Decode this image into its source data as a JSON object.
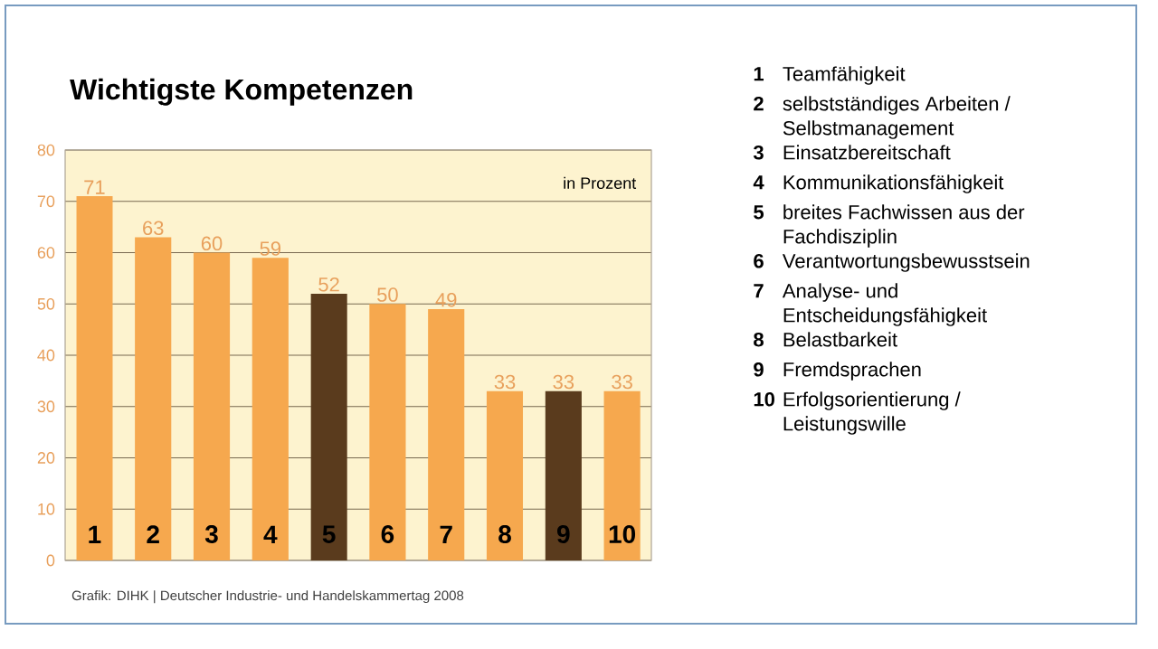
{
  "chart_data": {
    "type": "bar",
    "title": "Wichtigste Kompetenzen",
    "categories": [
      "1",
      "2",
      "3",
      "4",
      "5",
      "6",
      "7",
      "8",
      "9",
      "10"
    ],
    "values": [
      71,
      63,
      60,
      59,
      52,
      50,
      49,
      33,
      33,
      33
    ],
    "colors": [
      "#f6a84e",
      "#f6a84e",
      "#f6a84e",
      "#f6a84e",
      "#5a3b1d",
      "#f6a84e",
      "#f6a84e",
      "#f6a84e",
      "#5a3b1d",
      "#f6a84e"
    ],
    "ylim": [
      0,
      80
    ],
    "yticks": [
      0,
      10,
      20,
      30,
      40,
      50,
      60,
      70,
      80
    ],
    "grid": "y",
    "data_labels": true,
    "annotations": [
      "in Prozent",
      "Grafik: DIHK | Deutscher Industrie- und Handelskammertag 2008",
      "Teamfähigkeit",
      "selbstständiges Arbeiten / Selbstmanagement",
      "Einsatzbereitschaft",
      "Kommunikationsfähigkeit",
      "breites Fachwissen aus der Fachdisziplin",
      "Verantwortungsbewusstsein",
      "Analyse- und Entscheidungsfähigkeit",
      "Belastbarkeit",
      "Fremdsprachen",
      "Erfolgsorientierung / Leistungswille"
    ]
  }
}
